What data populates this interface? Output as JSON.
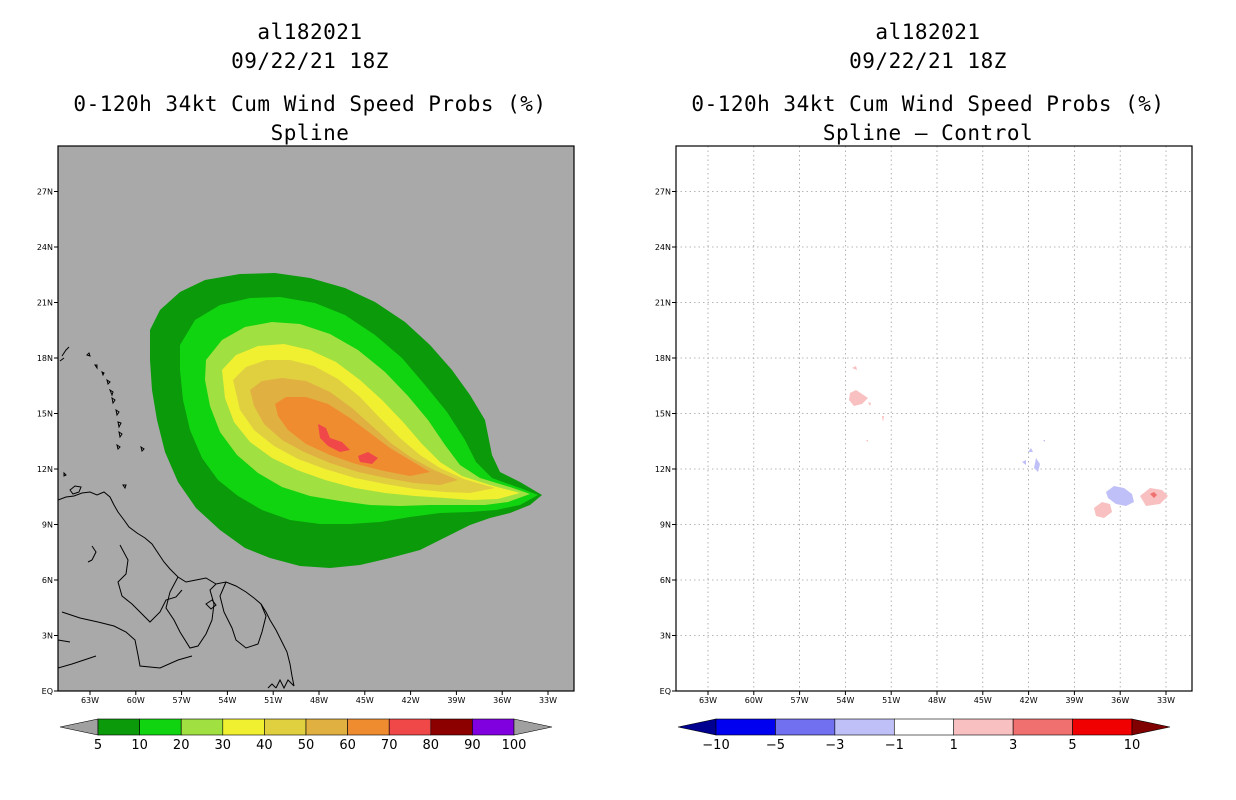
{
  "left_panel": {
    "title_lines": [
      "al182021",
      "09/22/21 18Z",
      "0-120h 34kt Cum Wind Speed Probs (%)",
      "Spline"
    ],
    "background": "#a9a9a9",
    "colorbar": {
      "labels": [
        "5",
        "10",
        "20",
        "30",
        "40",
        "50",
        "60",
        "70",
        "80",
        "90",
        "100"
      ],
      "colors": [
        "#a0a0a0",
        "#0a9a0a",
        "#10d410",
        "#a0e040",
        "#f0f030",
        "#e0d040",
        "#e0b040",
        "#f08c30",
        "#f04848",
        "#8c0000",
        "#8000e0",
        "#a0a0a0"
      ]
    }
  },
  "right_panel": {
    "title_lines": [
      "al182021",
      "09/22/21 18Z",
      "0-120h 34kt Cum Wind Speed Probs (%)",
      "Spline – Control"
    ],
    "background": "#ffffff",
    "colorbar": {
      "labels": [
        "−10",
        "−5",
        "−3",
        "−1",
        "1",
        "3",
        "5",
        "10"
      ],
      "colors": [
        "#000090",
        "#0000f0",
        "#7070f0",
        "#c0c0f8",
        "#ffffff",
        "#f8c0c0",
        "#f07070",
        "#f00000",
        "#800000"
      ]
    }
  },
  "axes": {
    "lat_labels": [
      "EQ",
      "3N",
      "6N",
      "9N",
      "12N",
      "15N",
      "18N",
      "21N",
      "24N",
      "27N"
    ],
    "lon_labels": [
      "63W",
      "60W",
      "57W",
      "54W",
      "51W",
      "48W",
      "45W",
      "42W",
      "39W",
      "36W",
      "33W"
    ]
  },
  "chart_data": {
    "type": "contour-map",
    "variable": "0-120h 34kt Cum Wind Speed Probs (%)",
    "storm": "al182021",
    "time": "09/22/21 18Z",
    "lon_range": [
      -65,
      -31
    ],
    "lat_range": [
      0,
      30
    ],
    "left_levels": [
      5,
      10,
      20,
      30,
      40,
      50,
      60,
      70,
      80,
      90,
      100
    ],
    "right_levels": [
      -10,
      -5,
      -3,
      -1,
      1,
      3,
      5,
      10
    ],
    "peak_probability_band": "70-80",
    "peak_location_lon_lat": [
      -46.5,
      13.5
    ]
  }
}
